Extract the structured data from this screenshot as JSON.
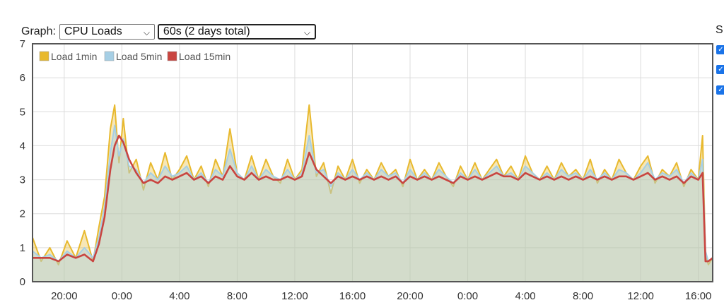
{
  "controls": {
    "graph_label": "Graph:",
    "graph_select": "CPU Loads",
    "interval_select": "60s (2 days total)"
  },
  "side_panel": {
    "label": "S",
    "checkboxes": [
      true,
      true,
      true
    ]
  },
  "colors": {
    "load1": "#e8b92e",
    "load5": "#a6cfe5",
    "load15": "#c94540",
    "grid": "#dcdcdc",
    "frame": "#555555"
  },
  "chart_data": {
    "type": "area",
    "xlabel": "",
    "ylabel": "",
    "ylim": [
      0,
      7
    ],
    "yticks": [
      0,
      1,
      2,
      3,
      4,
      5,
      6,
      7
    ],
    "xlim_hours": [
      17.8,
      65.0
    ],
    "xticks": [
      {
        "hour": 20,
        "label": "20:00"
      },
      {
        "hour": 24,
        "label": "0:00"
      },
      {
        "hour": 28,
        "label": "4:00"
      },
      {
        "hour": 32,
        "label": "8:00"
      },
      {
        "hour": 36,
        "label": "12:00"
      },
      {
        "hour": 40,
        "label": "16:00"
      },
      {
        "hour": 44,
        "label": "20:00"
      },
      {
        "hour": 48,
        "label": "0:00"
      },
      {
        "hour": 52,
        "label": "4:00"
      },
      {
        "hour": 56,
        "label": "8:00"
      },
      {
        "hour": 60,
        "label": "12:00"
      },
      {
        "hour": 64,
        "label": "16:00"
      }
    ],
    "grid": true,
    "legend_position": "top-left",
    "series": [
      {
        "name": "Load 1min",
        "color": "#e8b92e",
        "x": [
          17.8,
          18.4,
          19.0,
          19.6,
          20.2,
          20.8,
          21.4,
          22.0,
          22.4,
          22.8,
          23.2,
          23.5,
          23.8,
          24.1,
          24.5,
          25.0,
          25.5,
          26.0,
          26.5,
          27.0,
          27.5,
          28.0,
          28.5,
          29.0,
          29.5,
          30.0,
          30.5,
          31.0,
          31.5,
          32.0,
          32.5,
          33.0,
          33.5,
          34.0,
          34.5,
          35.0,
          35.5,
          36.0,
          36.5,
          37.0,
          37.5,
          38.0,
          38.5,
          39.0,
          39.5,
          40.0,
          40.5,
          41.0,
          41.5,
          42.0,
          42.5,
          43.0,
          43.5,
          44.0,
          44.5,
          45.0,
          45.5,
          46.0,
          46.5,
          47.0,
          47.5,
          48.0,
          48.5,
          49.0,
          49.5,
          50.0,
          50.5,
          51.0,
          51.5,
          52.0,
          52.5,
          53.0,
          53.5,
          54.0,
          54.5,
          55.0,
          55.5,
          56.0,
          56.5,
          57.0,
          57.5,
          58.0,
          58.5,
          59.0,
          59.5,
          60.0,
          60.5,
          61.0,
          61.5,
          62.0,
          62.5,
          63.0,
          63.5,
          64.0,
          64.3,
          64.5,
          64.7,
          65.0
        ],
        "y": [
          1.3,
          0.6,
          1.0,
          0.5,
          1.2,
          0.7,
          1.5,
          0.6,
          1.6,
          2.5,
          4.5,
          5.2,
          3.5,
          4.8,
          3.2,
          3.6,
          2.7,
          3.5,
          3.0,
          3.8,
          3.0,
          3.3,
          3.7,
          3.0,
          3.4,
          2.8,
          3.6,
          3.1,
          4.5,
          3.2,
          3.0,
          3.7,
          3.0,
          3.6,
          3.1,
          2.9,
          3.6,
          3.0,
          3.3,
          5.2,
          3.1,
          3.5,
          2.6,
          3.4,
          3.0,
          3.6,
          2.9,
          3.3,
          3.0,
          3.5,
          3.1,
          3.3,
          2.8,
          3.6,
          3.0,
          3.3,
          3.0,
          3.5,
          3.1,
          2.8,
          3.4,
          3.0,
          3.5,
          3.0,
          3.3,
          3.6,
          3.1,
          3.4,
          3.0,
          3.7,
          3.2,
          3.0,
          3.4,
          3.0,
          3.5,
          3.1,
          3.3,
          3.0,
          3.6,
          2.9,
          3.3,
          3.0,
          3.6,
          3.2,
          3.0,
          3.4,
          3.7,
          2.9,
          3.3,
          3.1,
          3.5,
          2.8,
          3.3,
          3.0,
          4.3,
          0.8,
          0.5,
          0.7
        ]
      },
      {
        "name": "Load 5min",
        "color": "#a6cfe5",
        "x": [
          17.8,
          18.4,
          19.0,
          19.6,
          20.2,
          20.8,
          21.4,
          22.0,
          22.4,
          22.8,
          23.2,
          23.5,
          23.8,
          24.1,
          24.5,
          25.0,
          25.5,
          26.0,
          26.5,
          27.0,
          27.5,
          28.0,
          28.5,
          29.0,
          29.5,
          30.0,
          30.5,
          31.0,
          31.5,
          32.0,
          32.5,
          33.0,
          33.5,
          34.0,
          34.5,
          35.0,
          35.5,
          36.0,
          36.5,
          37.0,
          37.5,
          38.0,
          38.5,
          39.0,
          39.5,
          40.0,
          40.5,
          41.0,
          41.5,
          42.0,
          42.5,
          43.0,
          43.5,
          44.0,
          44.5,
          45.0,
          45.5,
          46.0,
          46.5,
          47.0,
          47.5,
          48.0,
          48.5,
          49.0,
          49.5,
          50.0,
          50.5,
          51.0,
          51.5,
          52.0,
          52.5,
          53.0,
          53.5,
          54.0,
          54.5,
          55.0,
          55.5,
          56.0,
          56.5,
          57.0,
          57.5,
          58.0,
          58.5,
          59.0,
          59.5,
          60.0,
          60.5,
          61.0,
          61.5,
          62.0,
          62.5,
          63.0,
          63.5,
          64.0,
          64.3,
          64.5,
          64.7,
          65.0
        ],
        "y": [
          0.9,
          0.7,
          0.8,
          0.6,
          0.9,
          0.7,
          1.0,
          0.7,
          1.3,
          2.2,
          3.8,
          4.6,
          3.7,
          4.2,
          3.4,
          3.3,
          2.9,
          3.2,
          3.0,
          3.4,
          3.1,
          3.2,
          3.4,
          3.0,
          3.2,
          2.9,
          3.3,
          3.1,
          3.9,
          3.2,
          3.0,
          3.4,
          3.0,
          3.3,
          3.1,
          3.0,
          3.3,
          3.0,
          3.2,
          4.3,
          3.2,
          3.3,
          2.8,
          3.2,
          3.0,
          3.3,
          3.0,
          3.2,
          3.0,
          3.3,
          3.1,
          3.2,
          2.9,
          3.3,
          3.0,
          3.2,
          3.0,
          3.3,
          3.1,
          2.9,
          3.2,
          3.0,
          3.3,
          3.0,
          3.2,
          3.4,
          3.1,
          3.2,
          3.0,
          3.4,
          3.2,
          3.0,
          3.2,
          3.0,
          3.3,
          3.1,
          3.2,
          3.0,
          3.3,
          3.0,
          3.2,
          3.0,
          3.3,
          3.2,
          3.0,
          3.2,
          3.5,
          3.0,
          3.2,
          3.1,
          3.3,
          2.9,
          3.2,
          3.0,
          3.6,
          0.9,
          0.6,
          0.7
        ]
      },
      {
        "name": "Load 15min",
        "color": "#c94540",
        "x": [
          17.8,
          18.4,
          19.0,
          19.6,
          20.2,
          20.8,
          21.4,
          22.0,
          22.4,
          22.8,
          23.2,
          23.5,
          23.8,
          24.1,
          24.5,
          25.0,
          25.5,
          26.0,
          26.5,
          27.0,
          27.5,
          28.0,
          28.5,
          29.0,
          29.5,
          30.0,
          30.5,
          31.0,
          31.5,
          32.0,
          32.5,
          33.0,
          33.5,
          34.0,
          34.5,
          35.0,
          35.5,
          36.0,
          36.5,
          37.0,
          37.5,
          38.0,
          38.5,
          39.0,
          39.5,
          40.0,
          40.5,
          41.0,
          41.5,
          42.0,
          42.5,
          43.0,
          43.5,
          44.0,
          44.5,
          45.0,
          45.5,
          46.0,
          46.5,
          47.0,
          47.5,
          48.0,
          48.5,
          49.0,
          49.5,
          50.0,
          50.5,
          51.0,
          51.5,
          52.0,
          52.5,
          53.0,
          53.5,
          54.0,
          54.5,
          55.0,
          55.5,
          56.0,
          56.5,
          57.0,
          57.5,
          58.0,
          58.5,
          59.0,
          59.5,
          60.0,
          60.5,
          61.0,
          61.5,
          62.0,
          62.5,
          63.0,
          63.5,
          64.0,
          64.3,
          64.5,
          64.7,
          65.0
        ],
        "y": [
          0.7,
          0.7,
          0.7,
          0.6,
          0.8,
          0.7,
          0.8,
          0.6,
          1.1,
          1.9,
          3.3,
          4.0,
          4.3,
          4.1,
          3.6,
          3.2,
          2.9,
          3.0,
          2.9,
          3.1,
          3.0,
          3.1,
          3.2,
          3.0,
          3.1,
          2.9,
          3.1,
          3.0,
          3.4,
          3.1,
          3.0,
          3.2,
          3.0,
          3.1,
          3.0,
          3.0,
          3.1,
          3.0,
          3.1,
          3.8,
          3.3,
          3.1,
          2.9,
          3.1,
          3.0,
          3.1,
          3.0,
          3.1,
          3.0,
          3.1,
          3.0,
          3.1,
          2.9,
          3.1,
          3.0,
          3.1,
          3.0,
          3.1,
          3.0,
          2.9,
          3.1,
          3.0,
          3.1,
          3.0,
          3.1,
          3.2,
          3.1,
          3.1,
          3.0,
          3.2,
          3.1,
          3.0,
          3.1,
          3.0,
          3.1,
          3.0,
          3.1,
          3.0,
          3.1,
          3.0,
          3.1,
          3.0,
          3.1,
          3.1,
          3.0,
          3.1,
          3.2,
          3.0,
          3.1,
          3.0,
          3.1,
          2.9,
          3.1,
          3.0,
          3.2,
          0.6,
          0.6,
          0.7
        ]
      }
    ]
  }
}
